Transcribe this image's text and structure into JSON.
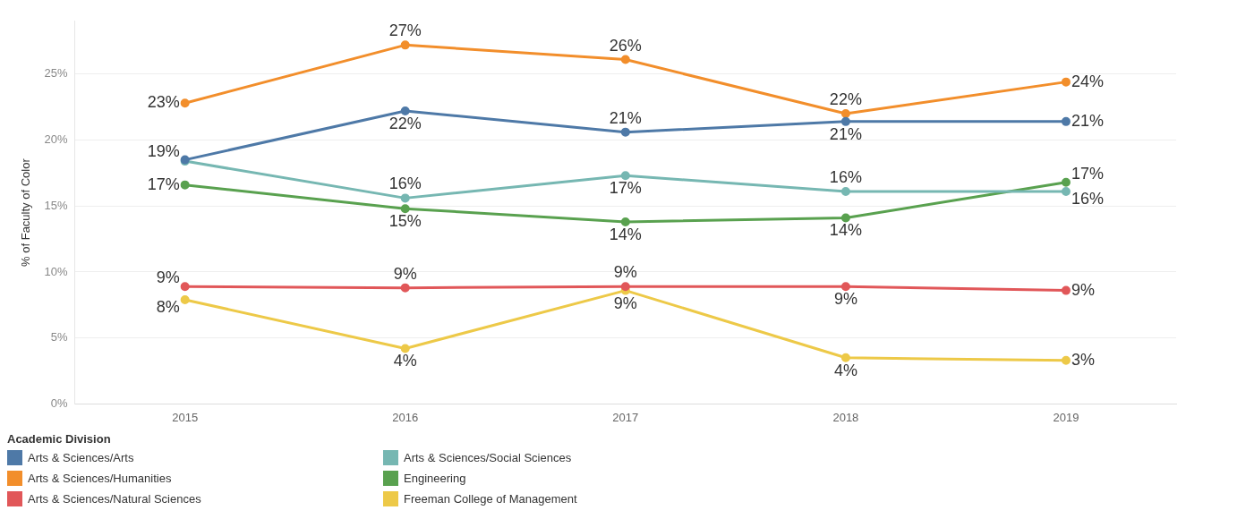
{
  "chart_data": {
    "type": "line",
    "ylabel": "% of Faculty of Color",
    "legend_title": "Academic Division",
    "legend": "bottom left",
    "grid": "y",
    "marker": "circle",
    "categories": [
      "2015",
      "2016",
      "2017",
      "2018",
      "2019"
    ],
    "ylim": [
      0,
      29
    ],
    "yticks": [
      {
        "value": 0,
        "label": "0%"
      },
      {
        "value": 5,
        "label": "5%"
      },
      {
        "value": 10,
        "label": "10%"
      },
      {
        "value": 15,
        "label": "15%"
      },
      {
        "value": 20,
        "label": "20%"
      },
      {
        "value": 25,
        "label": "25%"
      }
    ],
    "series": [
      {
        "name": "Arts & Sciences/Arts",
        "color": "#4e79a7",
        "values": [
          18.5,
          22.2,
          20.6,
          21.4,
          21.4
        ],
        "value_labels": [
          "19%",
          "22%",
          "21%",
          "21%",
          "21%"
        ]
      },
      {
        "name": "Arts & Sciences/Humanities",
        "color": "#f28e2b",
        "values": [
          22.8,
          27.2,
          26.1,
          22.0,
          24.4
        ],
        "value_labels": [
          "23%",
          "27%",
          "26%",
          "22%",
          "24%"
        ]
      },
      {
        "name": "Arts & Sciences/Natural Sciences",
        "color": "#e15759",
        "values": [
          8.9,
          8.8,
          8.9,
          8.9,
          8.6
        ],
        "value_labels": [
          "9%",
          "9%",
          "9%",
          "9%",
          "9%"
        ]
      },
      {
        "name": "Arts & Sciences/Social Sciences",
        "color": "#76b7b2",
        "values": [
          18.4,
          15.6,
          17.3,
          16.1,
          16.1
        ],
        "value_labels": [
          null,
          "16%",
          "17%",
          "16%",
          "16%"
        ]
      },
      {
        "name": "Engineering",
        "color": "#59a14f",
        "values": [
          16.6,
          14.8,
          13.8,
          14.1,
          16.8
        ],
        "value_labels": [
          "17%",
          "15%",
          "14%",
          "14%",
          "17%"
        ]
      },
      {
        "name": "Freeman College of Management",
        "color": "#edc948",
        "values": [
          7.9,
          4.2,
          8.6,
          3.5,
          3.3
        ],
        "value_labels": [
          "8%",
          "4%",
          "9%",
          "4%",
          "3%"
        ]
      }
    ]
  }
}
